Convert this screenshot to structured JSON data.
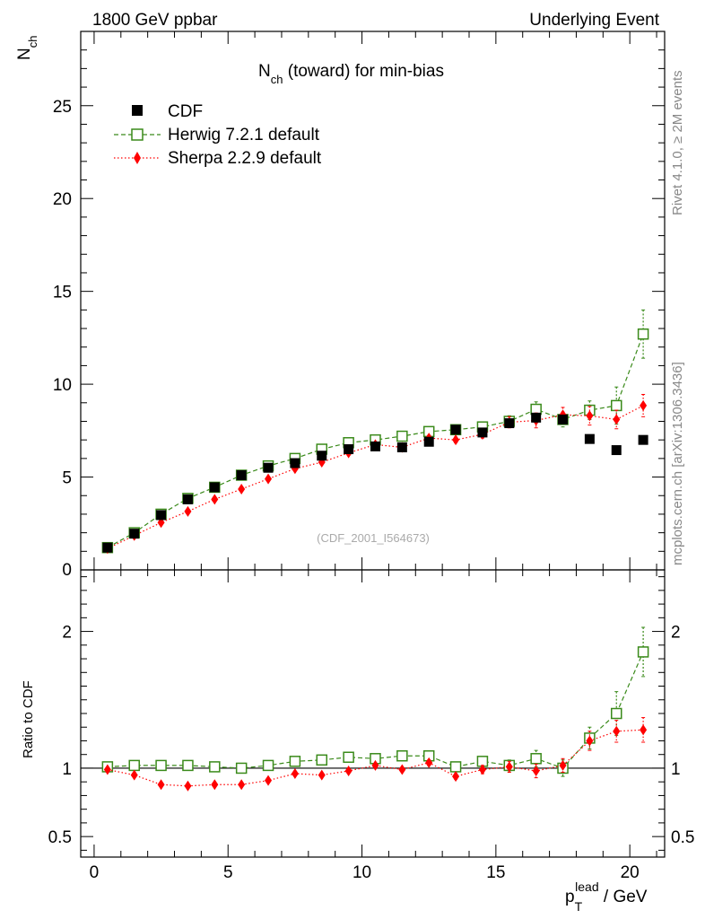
{
  "header": {
    "left": "1800 GeV ppbar",
    "right": "Underlying Event"
  },
  "side_labels": {
    "rivet": "Rivet 4.1.0, ≥ 2M events",
    "mcplots": "mcplots.cern.ch [arXiv:1306.3436]"
  },
  "main_panel": {
    "title_main": "N",
    "title_sub": "ch",
    "title_rest": " (toward) for min-bias",
    "ylabel_main": "N",
    "ylabel_sub": "ch",
    "analysis_ref": "(CDF_2001_I564673)",
    "legend": [
      {
        "label": "CDF",
        "color": "#000000",
        "marker": "square-filled"
      },
      {
        "label": "Herwig 7.2.1 default",
        "color": "#3a8a1a",
        "marker": "square-open"
      },
      {
        "label": "Sherpa 2.2.9 default",
        "color": "#ff0000",
        "marker": "diamond"
      }
    ]
  },
  "ratio_panel": {
    "ylabel": "Ratio to CDF"
  },
  "xaxis": {
    "label_main": "p",
    "label_sub": "T",
    "label_sup": "lead",
    "label_rest": " / GeV"
  },
  "chart_data": [
    {
      "type": "scatter",
      "title": "Nch (toward) for min-bias",
      "xlabel": "pT lead / GeV",
      "ylabel": "Nch",
      "xlim": [
        -0.5,
        21.3
      ],
      "ylim": [
        0,
        29
      ],
      "xticks": [
        0,
        5,
        10,
        15,
        20
      ],
      "yticks": [
        5,
        10,
        15,
        20,
        25
      ],
      "yticks_extra_label": "0",
      "x": [
        0.5,
        1.5,
        2.5,
        3.5,
        4.5,
        5.5,
        6.5,
        7.5,
        8.5,
        9.5,
        10.5,
        11.5,
        12.5,
        13.5,
        14.5,
        15.5,
        16.5,
        17.5,
        18.5,
        19.5,
        20.5
      ],
      "series": [
        {
          "name": "CDF",
          "color": "#000000",
          "values": [
            1.2,
            1.95,
            2.95,
            3.8,
            4.45,
            5.1,
            5.5,
            5.75,
            6.15,
            6.5,
            6.65,
            6.6,
            6.9,
            7.55,
            7.4,
            7.9,
            8.2,
            8.1,
            7.05,
            6.45,
            7.0
          ],
          "errors": [
            0.05,
            0.05,
            0.05,
            0.05,
            0.05,
            0.05,
            0.05,
            0.05,
            0.05,
            0.05,
            0.05,
            0.05,
            0.05,
            0.05,
            0.05,
            0.05,
            0.1,
            0.1,
            0.1,
            0.1,
            0.1
          ]
        },
        {
          "name": "Herwig 7.2.1 default",
          "color": "#3a8a1a",
          "values": [
            1.2,
            2.0,
            3.0,
            3.85,
            4.45,
            5.1,
            5.6,
            6.0,
            6.5,
            6.85,
            7.0,
            7.2,
            7.45,
            7.55,
            7.7,
            8.0,
            8.65,
            8.1,
            8.6,
            8.85,
            12.7
          ],
          "errors": [
            0.05,
            0.05,
            0.05,
            0.05,
            0.05,
            0.05,
            0.05,
            0.1,
            0.1,
            0.1,
            0.1,
            0.1,
            0.15,
            0.15,
            0.2,
            0.3,
            0.4,
            0.4,
            0.5,
            1.0,
            1.3
          ]
        },
        {
          "name": "Sherpa 2.2.9 default",
          "color": "#ff0000",
          "values": [
            1.15,
            1.85,
            2.55,
            3.15,
            3.8,
            4.35,
            4.9,
            5.45,
            5.8,
            6.3,
            6.75,
            6.6,
            7.1,
            7.0,
            7.3,
            7.95,
            8.05,
            8.35,
            8.3,
            8.1,
            8.85
          ],
          "errors": [
            0.05,
            0.05,
            0.05,
            0.05,
            0.05,
            0.05,
            0.05,
            0.1,
            0.1,
            0.1,
            0.1,
            0.1,
            0.15,
            0.15,
            0.2,
            0.3,
            0.4,
            0.4,
            0.5,
            0.5,
            0.6
          ]
        }
      ]
    },
    {
      "type": "scatter",
      "title": "Ratio to CDF",
      "xlabel": "pT lead / GeV",
      "ylabel": "Ratio to CDF",
      "xlim": [
        -0.5,
        21.3
      ],
      "ylim": [
        0.35,
        2.45
      ],
      "yticks": [
        0.5,
        1,
        2
      ],
      "reference_line": 1,
      "x": [
        0.5,
        1.5,
        2.5,
        3.5,
        4.5,
        5.5,
        6.5,
        7.5,
        8.5,
        9.5,
        10.5,
        11.5,
        12.5,
        13.5,
        14.5,
        15.5,
        16.5,
        17.5,
        18.5,
        19.5,
        20.5
      ],
      "series": [
        {
          "name": "Herwig 7.2.1 default",
          "color": "#3a8a1a",
          "values": [
            1.01,
            1.02,
            1.02,
            1.02,
            1.01,
            1.0,
            1.02,
            1.05,
            1.06,
            1.08,
            1.07,
            1.09,
            1.09,
            1.01,
            1.05,
            1.02,
            1.07,
            1.0,
            1.22,
            1.4,
            1.85
          ],
          "errors": [
            0.01,
            0.01,
            0.01,
            0.01,
            0.01,
            0.01,
            0.01,
            0.01,
            0.01,
            0.01,
            0.01,
            0.01,
            0.02,
            0.02,
            0.03,
            0.04,
            0.06,
            0.06,
            0.08,
            0.16,
            0.18
          ]
        },
        {
          "name": "Sherpa 2.2.9 default",
          "color": "#ff0000",
          "values": [
            0.99,
            0.95,
            0.88,
            0.87,
            0.88,
            0.88,
            0.91,
            0.96,
            0.95,
            0.98,
            1.02,
            0.99,
            1.04,
            0.94,
            0.99,
            1.01,
            0.98,
            1.02,
            1.2,
            1.27,
            1.28
          ],
          "errors": [
            0.01,
            0.01,
            0.01,
            0.01,
            0.01,
            0.01,
            0.01,
            0.01,
            0.01,
            0.01,
            0.01,
            0.01,
            0.02,
            0.02,
            0.03,
            0.04,
            0.05,
            0.05,
            0.07,
            0.08,
            0.09
          ]
        }
      ]
    }
  ]
}
